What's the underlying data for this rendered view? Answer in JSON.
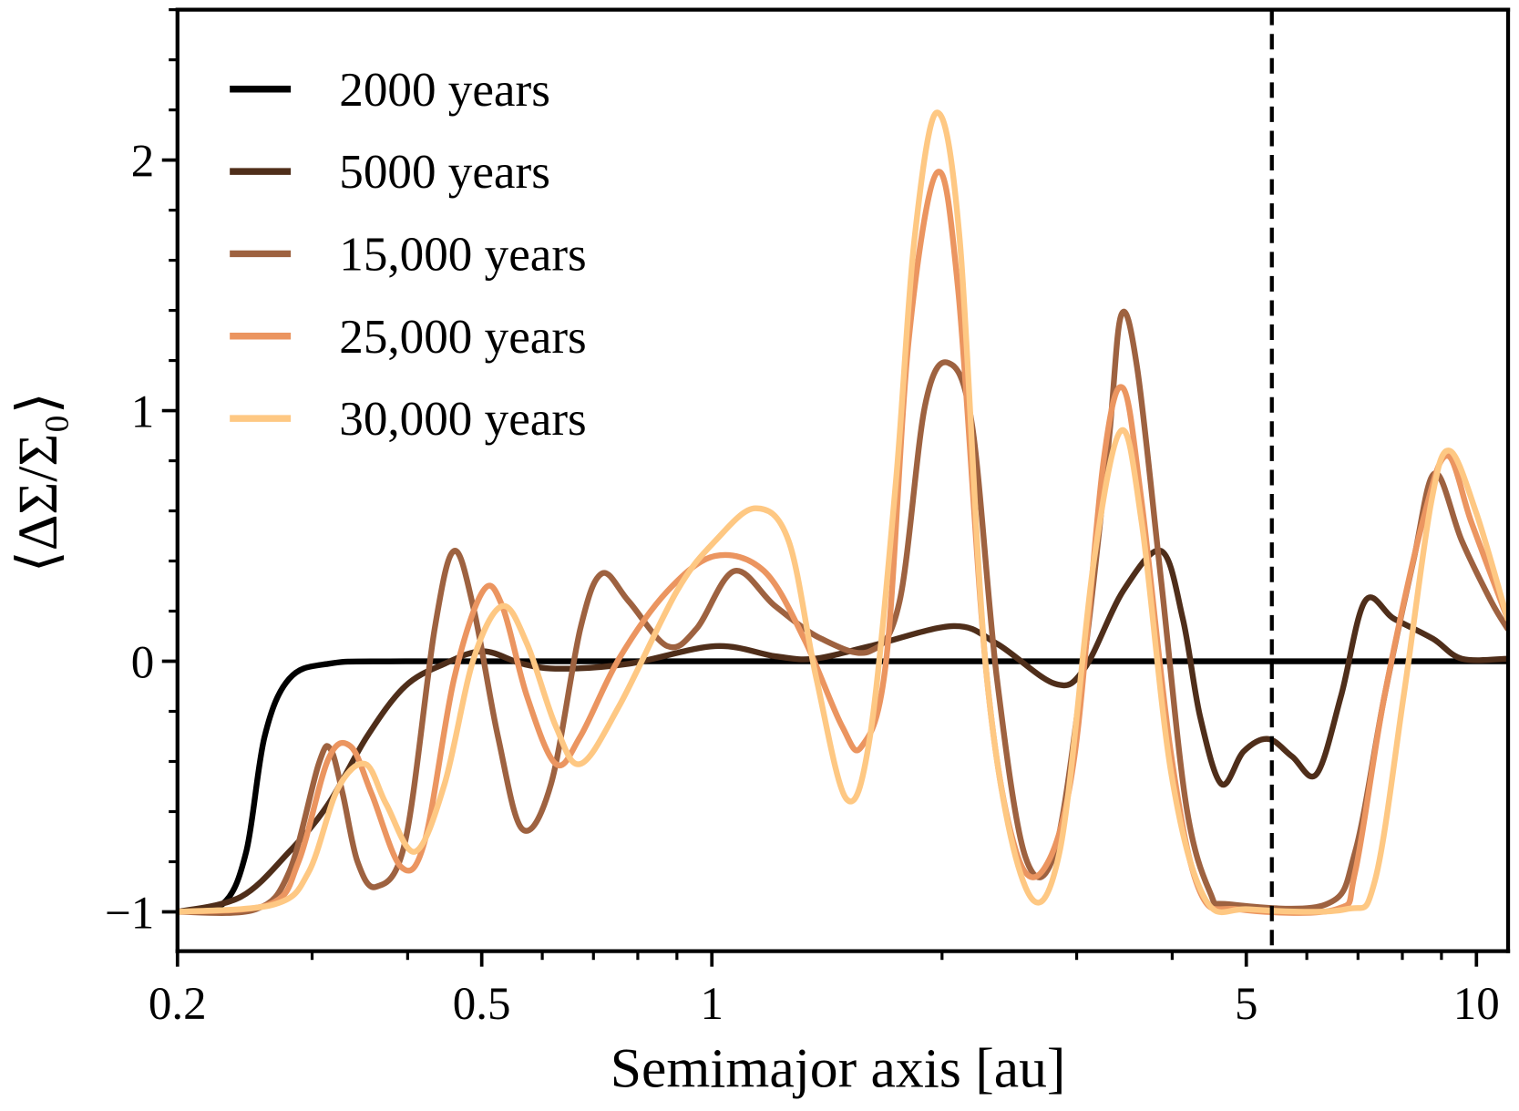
{
  "chart_data": {
    "type": "line",
    "title": "",
    "xlabel": "Semimajor axis [au]",
    "ylabel": "⟨ΔΣ/Σ₀⟩",
    "xscale": "log",
    "xlim": [
      0.2,
      11
    ],
    "ylim": [
      -1.157,
      2.6
    ],
    "grid": false,
    "legend_position": "top-left",
    "x_ticks": [
      {
        "value": 0.2,
        "label": "0.2"
      },
      {
        "value": 0.5,
        "label": "0.5"
      },
      {
        "value": 1,
        "label": "1"
      },
      {
        "value": 5,
        "label": "5"
      },
      {
        "value": 10,
        "label": "10"
      }
    ],
    "x_minor_ticks": [
      0.3,
      0.4,
      0.6,
      0.7,
      0.8,
      0.9,
      2,
      3,
      4,
      6,
      7,
      8,
      9
    ],
    "y_ticks": [
      {
        "value": -1,
        "label": "−1"
      },
      {
        "value": 0,
        "label": "0"
      },
      {
        "value": 1,
        "label": "1"
      },
      {
        "value": 2,
        "label": "2"
      }
    ],
    "y_minor_step": 0.2,
    "vline": {
      "x": 5.4,
      "style": "dashed",
      "color": "#000000"
    },
    "series": [
      {
        "name": "2000 years",
        "color": "#000000",
        "points": [
          [
            0.2,
            -1
          ],
          [
            0.229,
            -0.97
          ],
          [
            0.246,
            -0.76
          ],
          [
            0.26,
            -0.3
          ],
          [
            0.28,
            -0.07
          ],
          [
            0.315,
            -0.01
          ],
          [
            0.397,
            0
          ],
          [
            1,
            0
          ],
          [
            5,
            0
          ],
          [
            10.98,
            0
          ]
        ]
      },
      {
        "name": "5000 years",
        "color": "#4f2e1a",
        "points": [
          [
            0.2,
            -1
          ],
          [
            0.242,
            -0.94
          ],
          [
            0.28,
            -0.76
          ],
          [
            0.315,
            -0.57
          ],
          [
            0.354,
            -0.3
          ],
          [
            0.397,
            -0.1
          ],
          [
            0.447,
            -0.01
          ],
          [
            0.502,
            0.04
          ],
          [
            0.565,
            -0.01
          ],
          [
            0.634,
            -0.03
          ],
          [
            0.778,
            -0.01
          ],
          [
            1.01,
            0.06
          ],
          [
            1.21,
            0.02
          ],
          [
            1.36,
            0.01
          ],
          [
            1.61,
            0.06
          ],
          [
            2.07,
            0.14
          ],
          [
            2.36,
            0.07
          ],
          [
            2.81,
            -0.09
          ],
          [
            3.07,
            -0.03
          ],
          [
            3.45,
            0.28
          ],
          [
            3.87,
            0.44
          ],
          [
            4.13,
            0.17
          ],
          [
            4.35,
            -0.22
          ],
          [
            4.64,
            -0.49
          ],
          [
            4.96,
            -0.36
          ],
          [
            5.34,
            -0.31
          ],
          [
            5.74,
            -0.38
          ],
          [
            6.18,
            -0.45
          ],
          [
            6.65,
            -0.14
          ],
          [
            7.15,
            0.24
          ],
          [
            7.8,
            0.17
          ],
          [
            8.77,
            0.09
          ],
          [
            9.57,
            0.01
          ],
          [
            10.98,
            0.01
          ]
        ]
      },
      {
        "name": "15,000 years",
        "color": "#9e6240",
        "points": [
          [
            0.2,
            -1
          ],
          [
            0.253,
            -0.99
          ],
          [
            0.28,
            -0.84
          ],
          [
            0.306,
            -0.41
          ],
          [
            0.317,
            -0.35
          ],
          [
            0.329,
            -0.53
          ],
          [
            0.344,
            -0.8
          ],
          [
            0.364,
            -0.9
          ],
          [
            0.397,
            -0.72
          ],
          [
            0.434,
            0.13
          ],
          [
            0.46,
            0.44
          ],
          [
            0.488,
            0.21
          ],
          [
            0.525,
            -0.3
          ],
          [
            0.565,
            -0.67
          ],
          [
            0.616,
            -0.49
          ],
          [
            0.673,
            0.13
          ],
          [
            0.718,
            0.35
          ],
          [
            0.778,
            0.24
          ],
          [
            0.875,
            0.06
          ],
          [
            0.955,
            0.13
          ],
          [
            1.07,
            0.36
          ],
          [
            1.21,
            0.22
          ],
          [
            1.39,
            0.09
          ],
          [
            1.61,
            0.04
          ],
          [
            1.76,
            0.24
          ],
          [
            1.9,
            1.02
          ],
          [
            2.04,
            1.19
          ],
          [
            2.19,
            0.94
          ],
          [
            2.36,
            -0.07
          ],
          [
            2.57,
            -0.78
          ],
          [
            2.81,
            -0.76
          ],
          [
            3.07,
            0.01
          ],
          [
            3.3,
            0.86
          ],
          [
            3.43,
            1.38
          ],
          [
            3.6,
            1.17
          ],
          [
            3.87,
            0.32
          ],
          [
            4.17,
            -0.57
          ],
          [
            4.48,
            -0.92
          ],
          [
            4.75,
            -0.97
          ],
          [
            6.36,
            -0.97
          ],
          [
            6.94,
            -0.76
          ],
          [
            7.58,
            -0.14
          ],
          [
            8.27,
            0.4
          ],
          [
            8.82,
            0.75
          ],
          [
            9.57,
            0.48
          ],
          [
            10.45,
            0.24
          ],
          [
            10.98,
            0.13
          ]
        ]
      },
      {
        "name": "25,000 years",
        "color": "#eb9560",
        "points": [
          [
            0.2,
            -1
          ],
          [
            0.264,
            -0.97
          ],
          [
            0.288,
            -0.8
          ],
          [
            0.315,
            -0.39
          ],
          [
            0.337,
            -0.34
          ],
          [
            0.359,
            -0.53
          ],
          [
            0.392,
            -0.82
          ],
          [
            0.421,
            -0.72
          ],
          [
            0.46,
            -0.07
          ],
          [
            0.502,
            0.28
          ],
          [
            0.532,
            0.22
          ],
          [
            0.573,
            -0.14
          ],
          [
            0.625,
            -0.41
          ],
          [
            0.673,
            -0.3
          ],
          [
            0.756,
            0.01
          ],
          [
            0.875,
            0.28
          ],
          [
            1.01,
            0.42
          ],
          [
            1.17,
            0.36
          ],
          [
            1.32,
            0.09
          ],
          [
            1.48,
            -0.26
          ],
          [
            1.57,
            -0.34
          ],
          [
            1.69,
            0.0
          ],
          [
            1.81,
            1.29
          ],
          [
            1.97,
            1.95
          ],
          [
            2.1,
            1.48
          ],
          [
            2.29,
            -0.07
          ],
          [
            2.5,
            -0.76
          ],
          [
            2.73,
            -0.82
          ],
          [
            2.98,
            -0.38
          ],
          [
            3.25,
            0.79
          ],
          [
            3.45,
            1.09
          ],
          [
            3.65,
            0.63
          ],
          [
            3.99,
            -0.38
          ],
          [
            4.35,
            -0.92
          ],
          [
            4.89,
            -0.99
          ],
          [
            6.55,
            -0.99
          ],
          [
            6.94,
            -0.84
          ],
          [
            7.58,
            -0.14
          ],
          [
            8.51,
            0.56
          ],
          [
            9.16,
            0.82
          ],
          [
            9.86,
            0.55
          ],
          [
            10.98,
            0.17
          ]
        ]
      },
      {
        "name": "30,000 years",
        "color": "#fec883",
        "points": [
          [
            0.2,
            -1
          ],
          [
            0.268,
            -0.97
          ],
          [
            0.297,
            -0.84
          ],
          [
            0.324,
            -0.51
          ],
          [
            0.352,
            -0.41
          ],
          [
            0.375,
            -0.57
          ],
          [
            0.409,
            -0.76
          ],
          [
            0.447,
            -0.49
          ],
          [
            0.488,
            0.01
          ],
          [
            0.532,
            0.22
          ],
          [
            0.573,
            0.07
          ],
          [
            0.625,
            -0.26
          ],
          [
            0.673,
            -0.41
          ],
          [
            0.756,
            -0.18
          ],
          [
            0.9,
            0.28
          ],
          [
            1.01,
            0.48
          ],
          [
            1.14,
            0.61
          ],
          [
            1.26,
            0.48
          ],
          [
            1.37,
            -0.07
          ],
          [
            1.5,
            -0.55
          ],
          [
            1.61,
            -0.3
          ],
          [
            1.74,
            0.71
          ],
          [
            1.84,
            1.68
          ],
          [
            1.97,
            2.19
          ],
          [
            2.11,
            1.68
          ],
          [
            2.29,
            -0.07
          ],
          [
            2.57,
            -0.9
          ],
          [
            2.85,
            -0.76
          ],
          [
            3.16,
            0.4
          ],
          [
            3.43,
            0.92
          ],
          [
            3.65,
            0.55
          ],
          [
            3.99,
            -0.45
          ],
          [
            4.42,
            -0.95
          ],
          [
            5.04,
            -0.99
          ],
          [
            6.74,
            -0.99
          ],
          [
            7.36,
            -0.88
          ],
          [
            8.03,
            -0.14
          ],
          [
            8.72,
            0.63
          ],
          [
            9.22,
            0.84
          ],
          [
            10.0,
            0.59
          ],
          [
            10.98,
            0.17
          ]
        ]
      }
    ]
  }
}
